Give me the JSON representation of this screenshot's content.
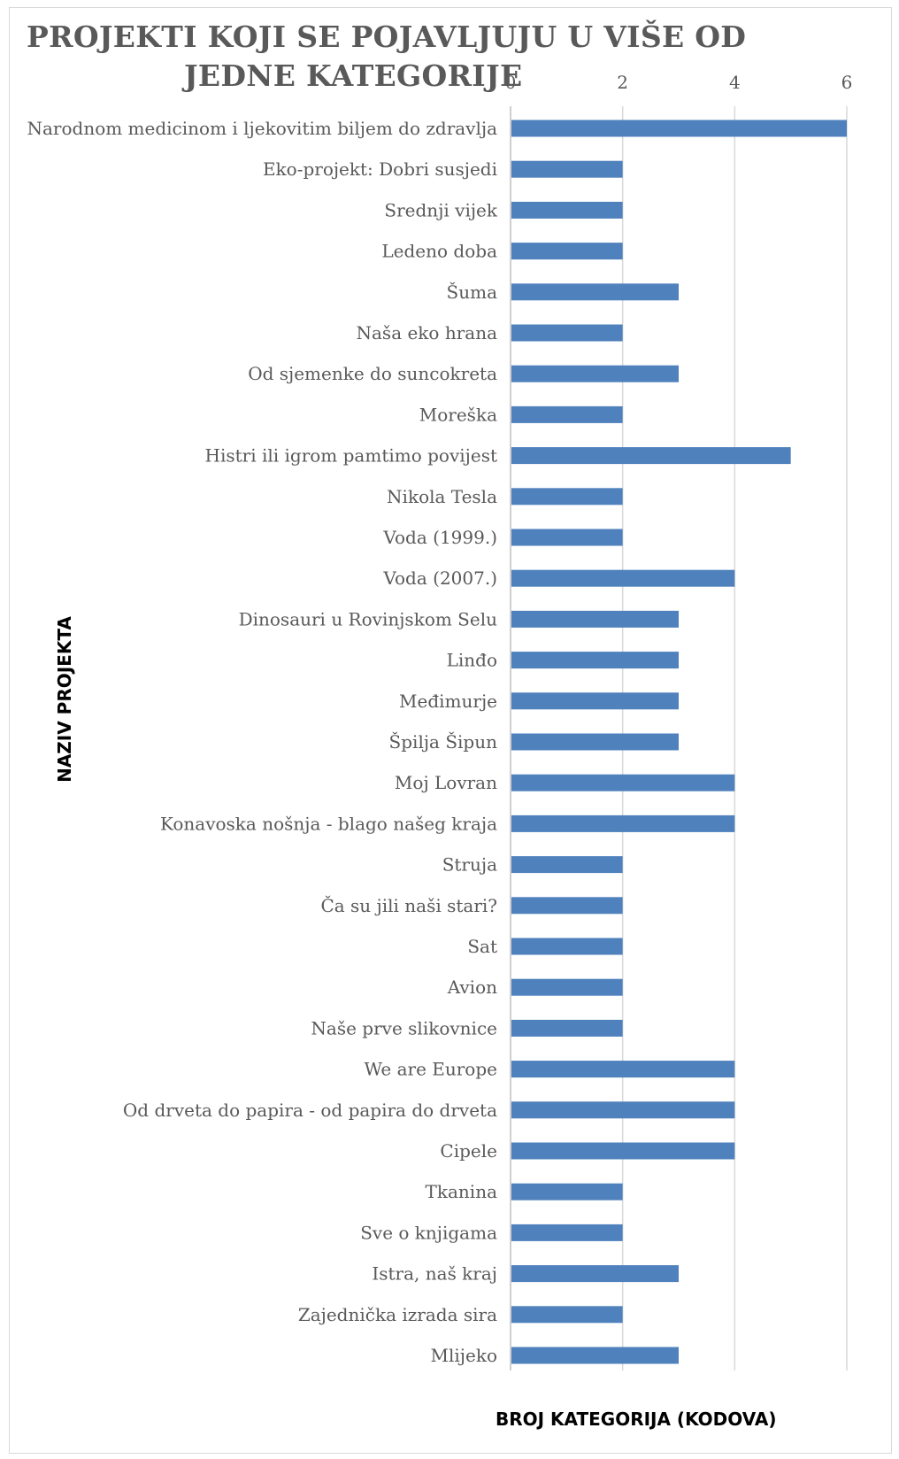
{
  "chart_data": {
    "type": "bar",
    "orientation": "horizontal",
    "title_lines": [
      "PROJEKTI KOJI SE POJAVLJUJU U VIŠE OD",
      "JEDNE KATEGORIJE"
    ],
    "xlabel": "BROJ KATEGORIJA (KODOVA)",
    "ylabel": "NAZIV PROJEKTA",
    "xlim": [
      0,
      6
    ],
    "x_ticks": [
      0,
      2,
      4,
      6
    ],
    "x_axis_position": "top",
    "grid": true,
    "bar_color": "#4f81bd",
    "categories": [
      "Narodnom medicinom i ljekovitim biljem do zdravlja",
      "Eko-projekt: Dobri susjedi",
      "Srednji vijek",
      "Ledeno doba",
      "Šuma",
      "Naša eko hrana",
      "Od sjemenke do suncokreta",
      "Moreška",
      "Histri ili igrom pamtimo povijest",
      "Nikola Tesla",
      "Voda (1999.)",
      "Voda (2007.)",
      "Dinosauri u Rovinjskom Selu",
      "Linđo",
      "Međimurje",
      "Špilja Šipun",
      "Moj Lovran",
      "Konavoska nošnja - blago našeg kraja",
      "Struja",
      "Ča su jili naši stari?",
      "Sat",
      "Avion",
      "Naše prve slikovnice",
      "We are Europe",
      "Od drveta do papira - od papira do drveta",
      "Cipele",
      "Tkanina",
      "Sve o knjigama",
      "Istra, naš kraj",
      "Zajednička izrada sira",
      "Mlijeko"
    ],
    "values": [
      6,
      2,
      2,
      2,
      3,
      2,
      3,
      2,
      5,
      2,
      2,
      4,
      3,
      3,
      3,
      3,
      4,
      4,
      2,
      2,
      2,
      2,
      2,
      4,
      4,
      4,
      2,
      2,
      3,
      2,
      3
    ]
  }
}
